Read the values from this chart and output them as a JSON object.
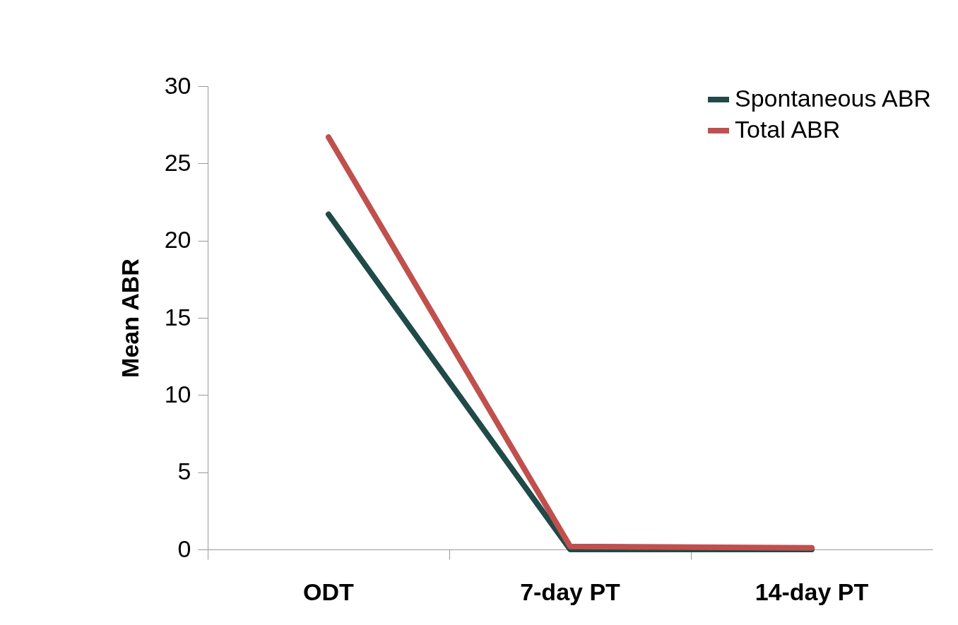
{
  "chart_data": {
    "type": "line",
    "ylabel": "Mean ABR",
    "categories": [
      "ODT",
      "7-day PT",
      "14-day PT"
    ],
    "series": [
      {
        "name": "Spontaneous ABR",
        "color": "#1f4a48",
        "values": [
          21.7,
          0,
          0
        ]
      },
      {
        "name": "Total ABR",
        "color": "#c0504d",
        "values": [
          26.7,
          0.2,
          0.1
        ]
      }
    ],
    "ylim": [
      0,
      30
    ],
    "yticks": [
      0,
      5,
      10,
      15,
      20,
      25,
      30
    ],
    "legend": "top right"
  }
}
